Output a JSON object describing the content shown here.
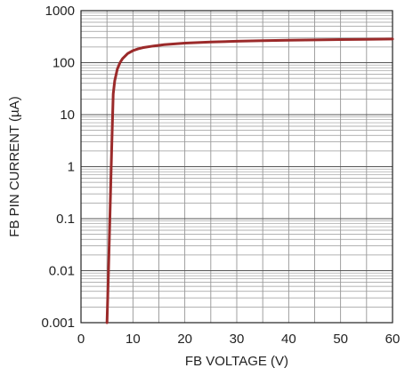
{
  "chart_data": {
    "type": "line",
    "title": "",
    "xlabel": "FB VOLTAGE (V)",
    "ylabel": "FB PIN CURRENT (µA)",
    "xlim": [
      0,
      60
    ],
    "ylim": [
      0.001,
      1000
    ],
    "yscale": "log",
    "grid": true,
    "x_ticks": [
      "0",
      "10",
      "20",
      "30",
      "40",
      "50",
      "60"
    ],
    "y_ticks": [
      "0.001",
      "0.01",
      "0.1",
      "1",
      "10",
      "100",
      "1000"
    ],
    "series": [
      {
        "color": "#9b2a2a",
        "x": [
          5.0,
          5.3,
          5.6,
          5.9,
          6.2,
          6.5,
          7.0,
          7.5,
          8.0,
          9.0,
          10.0,
          11.0,
          12.0,
          14.0,
          16.0,
          20.0,
          25.0,
          30.0,
          35.0,
          40.0,
          45.0,
          50.0,
          55.0,
          60.0
        ],
        "y": [
          0.001,
          0.01,
          0.15,
          2,
          25,
          45,
          75,
          100,
          120,
          150,
          170,
          185,
          195,
          210,
          222,
          238,
          250,
          258,
          264,
          270,
          274,
          278,
          282,
          285
        ]
      }
    ]
  }
}
